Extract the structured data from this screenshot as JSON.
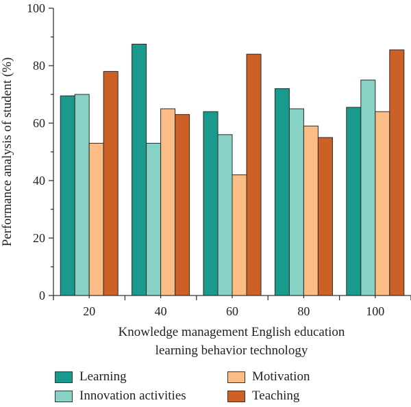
{
  "chart_data": {
    "type": "bar",
    "title": "",
    "xlabel": [
      "Knowledge management English education",
      "learning behavior technology"
    ],
    "ylabel": "Performance analysis of student (%)",
    "categories": [
      "20",
      "40",
      "60",
      "80",
      "100"
    ],
    "ylim": [
      0,
      100
    ],
    "yticks": [
      "0",
      "20",
      "40",
      "60",
      "80",
      "100"
    ],
    "grid": false,
    "legend_placement": "bottom",
    "series": [
      {
        "name": "Learning",
        "color": "#1a9a8c",
        "values": [
          69.5,
          87.5,
          64,
          72,
          65.5
        ]
      },
      {
        "name": "Innovation activities",
        "color": "#88d1c5",
        "values": [
          70,
          53,
          56,
          65,
          75
        ]
      },
      {
        "name": "Motivation",
        "color": "#fbbc85",
        "values": [
          53,
          65,
          42,
          59,
          64
        ]
      },
      {
        "name": "Teaching",
        "color": "#cc6027",
        "values": [
          78,
          63,
          84,
          55,
          85.5
        ]
      }
    ]
  }
}
